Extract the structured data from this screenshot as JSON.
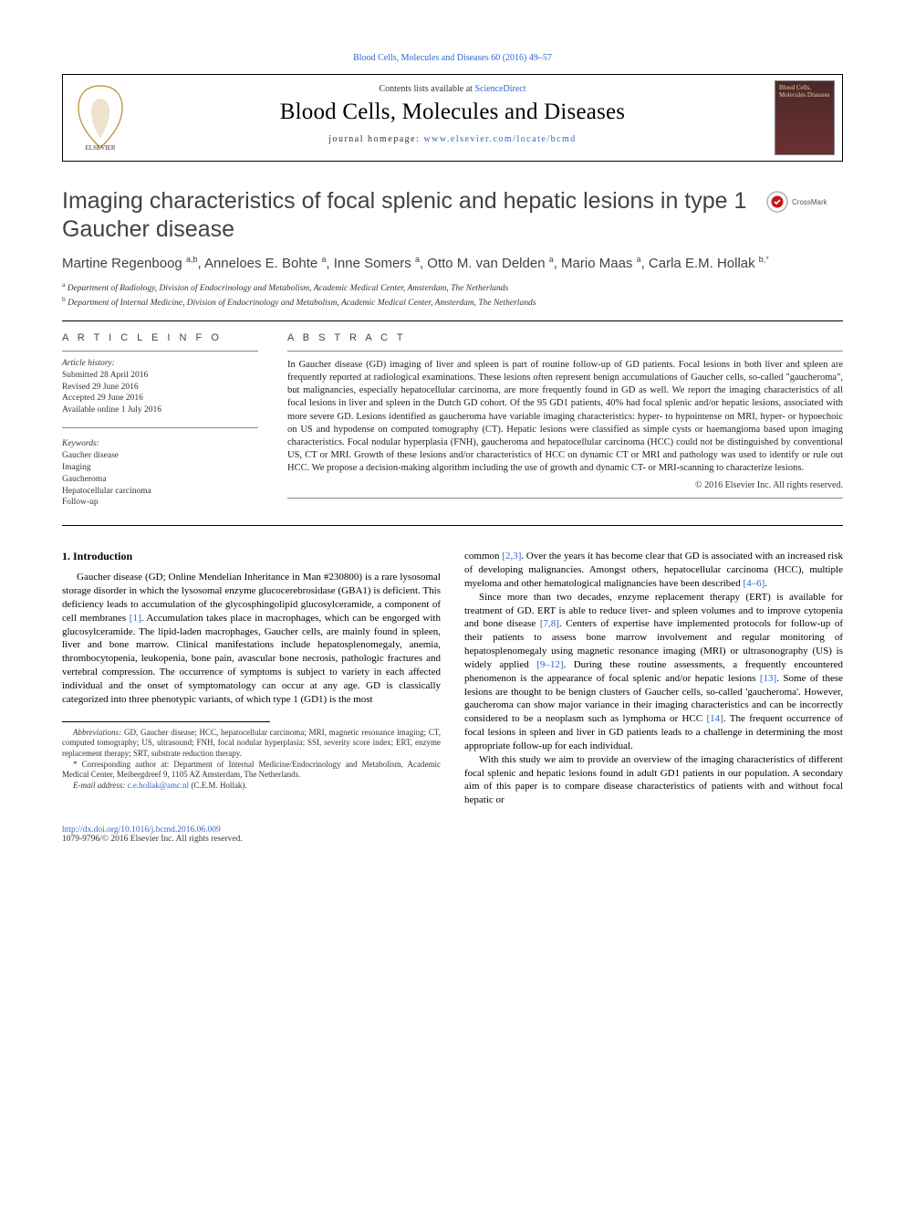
{
  "top_link": "Blood Cells, Molecules and Diseases 60 (2016) 49–57",
  "header": {
    "contents_prefix": "Contents lists available at ",
    "contents_link": "ScienceDirect",
    "journal": "Blood Cells, Molecules and Diseases",
    "homepage_prefix": "journal homepage: ",
    "homepage_url": "www.elsevier.com/locate/bcmd",
    "cover_text": "Blood Cells, Molecules Diseases"
  },
  "title": "Imaging characteristics of focal splenic and hepatic lesions in type 1 Gaucher disease",
  "crossmark_label": "CrossMark",
  "authors_html": "Martine Regenboog <sup>a,b</sup>, Anneloes E. Bohte <sup>a</sup>, Inne Somers <sup>a</sup>, Otto M. van Delden <sup>a</sup>, Mario Maas <sup>a</sup>, Carla E.M. Hollak <sup>b,</sup><sup class=\"asterisk\">*</sup>",
  "affiliations": [
    {
      "sup": "a",
      "text": " Department of Radiology, Division of Endocrinology and Metabolism, Academic Medical Center, Amsterdam, The Netherlands"
    },
    {
      "sup": "b",
      "text": " Department of Internal Medicine, Division of Endocrinology and Metabolism, Academic Medical Center, Amsterdam, The Netherlands"
    }
  ],
  "labels": {
    "article_info": "A R T I C L E   I N F O",
    "abstract": "A B S T R A C T"
  },
  "history": {
    "head": "Article history:",
    "items": [
      "Submitted 28 April 2016",
      "Revised 29 June 2016",
      "Accepted 29 June 2016",
      "Available online 1 July 2016"
    ]
  },
  "keywords": {
    "head": "Keywords:",
    "items": [
      "Gaucher disease",
      "Imaging",
      "Gaucheroma",
      "Hepatocellular carcinoma",
      "Follow-up"
    ]
  },
  "abstract": "In Gaucher disease (GD) imaging of liver and spleen is part of routine follow-up of GD patients. Focal lesions in both liver and spleen are frequently reported at radiological examinations. These lesions often represent benign accumulations of Gaucher cells, so-called \"gaucheroma\", but malignancies, especially hepatocellular carcinoma, are more frequently found in GD as well. We report the imaging characteristics of all focal lesions in liver and spleen in the Dutch GD cohort. Of the 95 GD1 patients, 40% had focal splenic and/or hepatic lesions, associated with more severe GD. Lesions identified as gaucheroma have variable imaging characteristics: hyper- to hypointense on MRI, hyper- or hypoechoic on US and hypodense on computed tomography (CT). Hepatic lesions were classified as simple cysts or haemangioma based upon imaging characteristics. Focal nodular hyperplasia (FNH), gaucheroma and hepatocellular carcinoma (HCC) could not be distinguished by conventional US, CT or MRI. Growth of these lesions and/or characteristics of HCC on dynamic CT or MRI and pathology was used to identify or rule out HCC. We propose a decision-making algorithm including the use of growth and dynamic CT- or MRI-scanning to characterize lesions.",
  "copyright": "© 2016 Elsevier Inc. All rights reserved.",
  "intro_head": "1. Introduction",
  "col1_paras": [
    "Gaucher disease (GD; Online Mendelian Inheritance in Man #230800) is a rare lysosomal storage disorder in which the lysosomal enzyme glucocerebrosidase (GBA1) is deficient. This deficiency leads to accumulation of the glycosphingolipid glucosylceramide, a component of cell membranes <span class=\"ref\">[1]</span>. Accumulation takes place in macrophages, which can be engorged with glucosylceramide. The lipid-laden macrophages, Gaucher cells, are mainly found in spleen, liver and bone marrow. Clinical manifestations include hepatosplenomegaly, anemia, thrombocytopenia, leukopenia, bone pain, avascular bone necrosis, pathologic fractures and vertebral compression. The occurrence of symptoms is subject to variety in each affected individual and the onset of symptomatology can occur at any age. GD is classically categorized into three phenotypic variants, of which type 1 (GD1) is the most"
  ],
  "col2_paras": [
    "common <span class=\"ref\">[2,3]</span>. Over the years it has become clear that GD is associated with an increased risk of developing malignancies. Amongst others, hepatocellular carcinoma (HCC), multiple myeloma and other hematological malignancies have been described <span class=\"ref\">[4–6]</span>.",
    "Since more than two decades, enzyme replacement therapy (ERT) is available for treatment of GD. ERT is able to reduce liver- and spleen volumes and to improve cytopenia and bone disease <span class=\"ref\">[7,8]</span>. Centers of expertise have implemented protocols for follow-up of their patients to assess bone marrow involvement and regular monitoring of hepatosplenomegaly using magnetic resonance imaging (MRI) or ultrasonography (US) is widely applied <span class=\"ref\">[9–12]</span>. During these routine assessments, a frequently encountered phenomenon is the appearance of focal splenic and/or hepatic lesions <span class=\"ref\">[13]</span>. Some of these lesions are thought to be benign clusters of Gaucher cells, so-called 'gaucheroma'. However, gaucheroma can show major variance in their imaging characteristics and can be incorrectly considered to be a neoplasm such as lymphoma or HCC <span class=\"ref\">[14]</span>. The frequent occurrence of focal lesions in spleen and liver in GD patients leads to a challenge in determining the most appropriate follow-up for each individual.",
    "With this study we aim to provide an overview of the imaging characteristics of different focal splenic and hepatic lesions found in adult GD1 patients in our population. A secondary aim of this paper is to compare disease characteristics of patients with and without focal hepatic or"
  ],
  "footnotes": {
    "abbrev": "<span class=\"fi\">Abbreviations:</span> GD, Gaucher disease; HCC, hepatocellular carcinoma; MRI, magnetic resonance imaging; CT, computed tomography; US, ultrasound; FNH, focal nodular hyperplasia; SSI, severity score index; ERT, enzyme replacement therapy; SRT, substrate reduction therapy.",
    "corr": "* Corresponding author at: Department of Internal Medicine/Endocrinology and Metabolism, Academic Medical Center, Meibergdreef 9, 1105 AZ Amsterdam, The Netherlands.",
    "email_label": "E-mail address: ",
    "email": "c.e.hollak@amc.nl",
    "email_tail": " (C.E.M. Hollak)."
  },
  "bottom": {
    "doi": "http://dx.doi.org/10.1016/j.bcmd.2016.06.009",
    "issn": "1079-9796/© 2016 Elsevier Inc. All rights reserved."
  },
  "colors": {
    "link": "#3366cc",
    "title_gray": "#424242",
    "cover_bg1": "#4a2a2a",
    "cover_bg2": "#6b3030",
    "cover_text": "#e8d098"
  }
}
